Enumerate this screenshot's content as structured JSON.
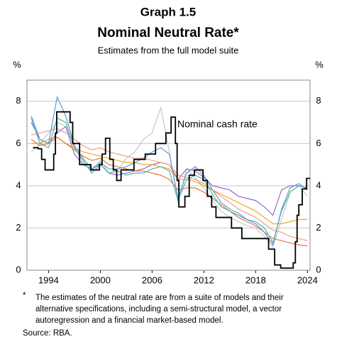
{
  "chart_data": {
    "type": "line",
    "supertitle": "Graph 1.5",
    "title": "Nominal Neutral Rate*",
    "subtitle": "Estimates from the full model suite",
    "y_unit_left": "%",
    "y_unit_right": "%",
    "annotation": "Nominal cash rate",
    "footnote_marker": "*",
    "footnote_lines": [
      "The estimates of the neutral rate are from a suite of models and their",
      "alternative specifications, including a semi-structural model, a vector",
      "autoregression and a financial market-based model."
    ],
    "source": "Source: RBA.",
    "xlim": [
      1991.5,
      2024.3
    ],
    "xticks": [
      1994,
      2000,
      2006,
      2012,
      2018,
      2024
    ],
    "ylim": [
      0,
      9
    ],
    "yticks": [
      0,
      2,
      4,
      6,
      8
    ],
    "grid": true,
    "series": [
      {
        "color": "#c8c8c8",
        "x": [
          1992,
          1993,
          1994,
          1995,
          1996,
          1997,
          1998,
          1999,
          2000,
          2001,
          2002,
          2003,
          2004,
          2005,
          2006,
          2007,
          2008,
          2009,
          2010,
          2011,
          2012,
          2013,
          2014,
          2015,
          2016,
          2017,
          2018,
          2019,
          2020,
          2021,
          2022,
          2023,
          2024
        ],
        "values": [
          5.6,
          6.0,
          6.5,
          7.0,
          6.8,
          5.8,
          5.1,
          4.7,
          5.2,
          4.6,
          4.7,
          5.3,
          5.6,
          6.2,
          6.5,
          7.7,
          5.6,
          3.2,
          4.8,
          4.4,
          3.9,
          3.3,
          2.8,
          2.5,
          2.3,
          2.1,
          2.0,
          1.6,
          1.1,
          2.4,
          3.7,
          4.0,
          3.5
        ]
      },
      {
        "color": "#9966cc",
        "x": [
          1992,
          1993,
          1994,
          1995,
          1996,
          1997,
          1998,
          1999,
          2000,
          2001,
          2002,
          2003,
          2004,
          2005,
          2006,
          2007,
          2008,
          2009,
          2010,
          2011,
          2012,
          2013,
          2014,
          2015,
          2016,
          2017,
          2018,
          2019,
          2020,
          2021,
          2022,
          2023,
          2024
        ],
        "values": [
          7.0,
          6.2,
          6.0,
          6.5,
          6.8,
          5.5,
          5.0,
          4.8,
          5.0,
          4.6,
          4.5,
          4.6,
          4.7,
          4.8,
          5.0,
          5.1,
          5.0,
          4.3,
          4.8,
          4.7,
          4.4,
          4.0,
          3.9,
          3.8,
          3.5,
          3.4,
          3.3,
          3.0,
          2.6,
          3.8,
          4.0,
          4.0,
          3.9
        ]
      },
      {
        "color": "#f5a623",
        "x": [
          1992,
          1993,
          1994,
          1995,
          1996,
          1997,
          1998,
          1999,
          2000,
          2001,
          2002,
          2003,
          2004,
          2005,
          2006,
          2007,
          2008,
          2009,
          2010,
          2011,
          2012,
          2013,
          2014,
          2015,
          2016,
          2017,
          2018,
          2019,
          2020,
          2021,
          2022,
          2023,
          2024
        ],
        "values": [
          6.0,
          6.0,
          6.2,
          6.3,
          6.0,
          5.8,
          5.6,
          5.5,
          5.4,
          5.3,
          5.2,
          5.1,
          5.1,
          5.0,
          5.0,
          4.9,
          4.8,
          4.3,
          4.3,
          4.2,
          4.0,
          3.8,
          3.6,
          3.4,
          3.2,
          3.0,
          2.8,
          2.5,
          2.2,
          2.2,
          2.3,
          2.4,
          2.4
        ]
      },
      {
        "color": "#f59a8a",
        "x": [
          1992,
          1993,
          1994,
          1995,
          1996,
          1997,
          1998,
          1999,
          2000,
          2001,
          2002,
          2003,
          2004,
          2005,
          2006,
          2007,
          2008,
          2009,
          2010,
          2011,
          2012,
          2013,
          2014,
          2015,
          2016,
          2017,
          2018,
          2019,
          2020,
          2021,
          2022,
          2023,
          2024
        ],
        "values": [
          6.4,
          6.5,
          6.6,
          6.7,
          6.5,
          6.2,
          5.9,
          5.7,
          5.8,
          5.6,
          5.5,
          5.4,
          5.3,
          5.3,
          5.2,
          5.1,
          5.0,
          4.5,
          4.4,
          4.3,
          4.1,
          3.8,
          3.5,
          3.2,
          2.9,
          2.7,
          2.5,
          2.2,
          1.9,
          1.8,
          1.6,
          1.5,
          1.4
        ]
      },
      {
        "color": "#e8743b",
        "x": [
          1992,
          1993,
          1994,
          1995,
          1996,
          1997,
          1998,
          1999,
          2000,
          2001,
          2002,
          2003,
          2004,
          2005,
          2006,
          2007,
          2008,
          2009,
          2010,
          2011,
          2012,
          2013,
          2014,
          2015,
          2016,
          2017,
          2018,
          2019,
          2020,
          2021,
          2022,
          2023,
          2024
        ],
        "values": [
          6.2,
          5.9,
          6.0,
          6.3,
          6.0,
          5.7,
          5.4,
          5.2,
          5.3,
          5.0,
          4.9,
          4.8,
          4.7,
          4.7,
          4.6,
          4.5,
          4.3,
          3.8,
          3.9,
          3.9,
          3.7,
          3.4,
          3.1,
          2.8,
          2.5,
          2.3,
          2.1,
          1.8,
          1.5,
          1.4,
          1.3,
          1.2,
          1.15
        ]
      },
      {
        "color": "#4bb8a9",
        "x": [
          1992,
          1993,
          1994,
          1995,
          1996,
          1997,
          1998,
          1999,
          2000,
          2001,
          2002,
          2003,
          2004,
          2005,
          2006,
          2007,
          2008,
          2009,
          2010,
          2011,
          2012,
          2013,
          2014,
          2015,
          2016,
          2017,
          2018,
          2019,
          2020,
          2021,
          2022,
          2023,
          2024
        ],
        "values": [
          7.2,
          6.0,
          5.8,
          7.2,
          7.0,
          5.8,
          5.2,
          4.6,
          5.0,
          4.6,
          4.7,
          4.5,
          4.6,
          4.6,
          4.8,
          4.9,
          4.7,
          3.3,
          4.3,
          4.5,
          4.3,
          3.6,
          3.0,
          2.8,
          2.6,
          2.4,
          2.3,
          2.0,
          1.3,
          2.8,
          3.7,
          4.0,
          3.9
        ]
      },
      {
        "color": "#5b9bd5",
        "x": [
          1992,
          1993,
          1994,
          1995,
          1996,
          1997,
          1998,
          1999,
          2000,
          2001,
          2002,
          2003,
          2004,
          2005,
          2006,
          2007,
          2008,
          2009,
          2010,
          2011,
          2012,
          2013,
          2014,
          2015,
          2016,
          2017,
          2018,
          2019,
          2020,
          2021,
          2022,
          2023,
          2024
        ],
        "values": [
          7.3,
          6.2,
          6.0,
          8.2,
          7.3,
          5.9,
          5.3,
          4.8,
          5.1,
          4.8,
          4.8,
          4.9,
          5.1,
          5.3,
          5.6,
          5.8,
          5.5,
          3.4,
          4.6,
          4.9,
          4.5,
          3.8,
          3.2,
          2.9,
          2.7,
          2.4,
          2.2,
          1.8,
          1.2,
          2.9,
          3.9,
          4.1,
          3.8
        ]
      },
      {
        "color": "#000000",
        "step": true,
        "x": [
          1992.2,
          1992.8,
          1993.2,
          1993.6,
          1994.6,
          1994.8,
          1994.95,
          1996.5,
          1996.8,
          1997.6,
          1998.9,
          1999.9,
          2000.2,
          2000.6,
          2001.1,
          2001.5,
          2001.9,
          2002.4,
          2003.9,
          2005.2,
          2006.4,
          2007.6,
          2008.2,
          2008.7,
          2008.9,
          2009.1,
          2009.8,
          2010.3,
          2010.9,
          2011.9,
          2012.4,
          2012.9,
          2013.4,
          2015.2,
          2016.4,
          2019.5,
          2020.2,
          2020.9,
          2022.35,
          2022.6,
          2022.8,
          2023.0,
          2023.4,
          2023.9,
          2024.3
        ],
        "values": [
          5.8,
          5.75,
          5.25,
          4.75,
          5.5,
          6.5,
          7.5,
          7.0,
          6.0,
          5.0,
          4.75,
          5.0,
          5.5,
          6.25,
          5.25,
          4.75,
          4.25,
          4.75,
          5.25,
          5.5,
          6.0,
          6.5,
          7.25,
          6.0,
          4.25,
          3.0,
          3.5,
          4.5,
          4.75,
          4.25,
          3.5,
          3.0,
          2.5,
          2.0,
          1.5,
          1.0,
          0.25,
          0.1,
          0.35,
          1.35,
          2.6,
          3.1,
          3.85,
          4.35,
          4.35
        ]
      }
    ]
  }
}
